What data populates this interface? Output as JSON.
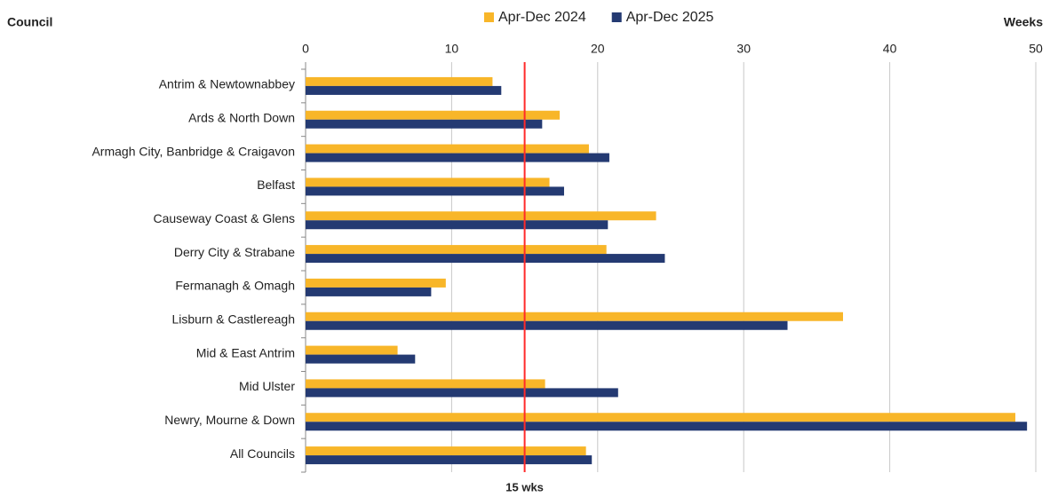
{
  "chart_data": {
    "type": "hbar",
    "y_axis_label": "Council",
    "x_axis_label": "Weeks",
    "categories": [
      "Antrim & Newtownabbey",
      "Ards & North Down",
      "Armagh City, Banbridge & Craigavon",
      "Belfast",
      "Causeway Coast & Glens",
      "Derry City & Strabane",
      "Fermanagh & Omagh",
      "Lisburn & Castlereagh",
      "Mid & East Antrim",
      "Mid Ulster",
      "Newry, Mourne & Down",
      "All Councils"
    ],
    "series": [
      {
        "name": "Apr-Dec 2024",
        "color": "#f8b629",
        "values": [
          12.8,
          17.4,
          19.4,
          16.7,
          24.0,
          20.6,
          9.6,
          36.8,
          6.3,
          16.4,
          48.6,
          19.2
        ]
      },
      {
        "name": "Apr-Dec 2025",
        "color": "#243a72",
        "values": [
          13.4,
          16.2,
          20.8,
          17.7,
          20.7,
          24.6,
          8.6,
          33.0,
          7.5,
          21.4,
          49.4,
          19.6
        ]
      }
    ],
    "xlim": [
      0,
      50
    ],
    "xticks": [
      0,
      10,
      20,
      30,
      40,
      50
    ],
    "grid": true,
    "legend": "top",
    "reference_line": {
      "value": 15,
      "label": "15 wks",
      "color": "#ff2a2a"
    }
  }
}
